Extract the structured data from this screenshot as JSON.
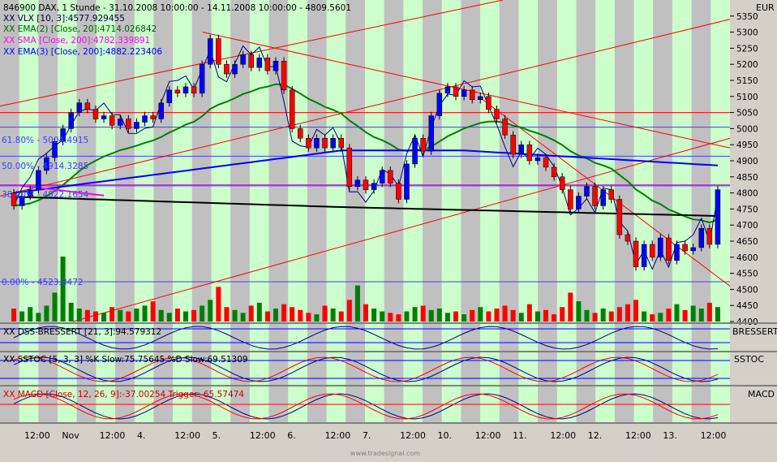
{
  "header": {
    "title_line": "846900  DAX, 1 Stunde - 31.10.2008 10:00:00 - 14.11.2008 10:00:00 - 4809.5601",
    "vlx": "XX VLX [10, 3]:4577.929455",
    "ema2": "XX EMA(2) [Close, 20]:4714.026842",
    "sma": "XX SMA [Close, 200]:4782.339891",
    "ema3": "XX EMA(3) [Close, 200]:4882.223406"
  },
  "fib": {
    "f618": "61.80% - 5004.4915",
    "f50": "50.00% - 4914.3285",
    "f382": "38.20% - 4822.1654",
    "f0": "0.00% - 4523.8472"
  },
  "currency": "EUR",
  "panels": {
    "dss": {
      "label": "XX DSS-BRESSERT [21, 3]:94.579312",
      "name": "BRESSERT"
    },
    "sstoc": {
      "label": "XX SSTOC [5, 3, 3] %K Slow:75.75645 %D Slow:69.51309",
      "name": "SSTOC"
    },
    "macd": {
      "label": "XX MACD [Close, 12, 26, 9]:-37.00254  Trigger:-65.57474",
      "name": "MACD"
    }
  },
  "x_labels": [
    "12:00",
    "Nov",
    "12:00",
    "4.",
    "12:00",
    "5.",
    "12:00",
    "6.",
    "12:00",
    "7.",
    "12:00",
    "10.",
    "12:00",
    "11.",
    "12:00",
    "12.",
    "12:00",
    "13.",
    "12:00"
  ],
  "watermark": "www.tradesignal.com",
  "colors": {
    "up": "#0000ff",
    "down": "#ff0000",
    "ema2": "#008000",
    "sma": "#ff00ff",
    "ema3": "#0000ff",
    "sma200": "#000000",
    "stripe_green": "#ccffcc",
    "stripe_gray": "#c0c0c0"
  },
  "chart_data": {
    "type": "candlestick",
    "x_unit": "hourly bars",
    "ylim": [
      4400,
      5400
    ],
    "y_ticks": [
      4400,
      4450,
      4500,
      4550,
      4600,
      4650,
      4700,
      4750,
      4800,
      4850,
      4900,
      4950,
      5000,
      5050,
      5100,
      5150,
      5200,
      5250,
      5300,
      5350
    ],
    "candles": [
      {
        "o": 4800,
        "c": 4760
      },
      {
        "o": 4760,
        "c": 4790
      },
      {
        "o": 4790,
        "c": 4810
      },
      {
        "o": 4810,
        "c": 4870
      },
      {
        "o": 4870,
        "c": 4910
      },
      {
        "o": 4910,
        "c": 4960
      },
      {
        "o": 4960,
        "c": 5000
      },
      {
        "o": 5000,
        "c": 5050
      },
      {
        "o": 5050,
        "c": 5080
      },
      {
        "o": 5080,
        "c": 5060
      },
      {
        "o": 5060,
        "c": 5030
      },
      {
        "o": 5030,
        "c": 5040
      },
      {
        "o": 5040,
        "c": 5010
      },
      {
        "o": 5010,
        "c": 5030
      },
      {
        "o": 5030,
        "c": 5000
      },
      {
        "o": 5000,
        "c": 5020
      },
      {
        "o": 5020,
        "c": 5040
      },
      {
        "o": 5040,
        "c": 5030
      },
      {
        "o": 5030,
        "c": 5080
      },
      {
        "o": 5080,
        "c": 5120
      },
      {
        "o": 5120,
        "c": 5110
      },
      {
        "o": 5110,
        "c": 5130
      },
      {
        "o": 5130,
        "c": 5110
      },
      {
        "o": 5110,
        "c": 5200
      },
      {
        "o": 5200,
        "c": 5280
      },
      {
        "o": 5280,
        "c": 5200
      },
      {
        "o": 5200,
        "c": 5170
      },
      {
        "o": 5170,
        "c": 5200
      },
      {
        "o": 5200,
        "c": 5230
      },
      {
        "o": 5230,
        "c": 5190
      },
      {
        "o": 5190,
        "c": 5220
      },
      {
        "o": 5220,
        "c": 5180
      },
      {
        "o": 5180,
        "c": 5210
      },
      {
        "o": 5210,
        "c": 5120
      },
      {
        "o": 5120,
        "c": 5000
      },
      {
        "o": 5000,
        "c": 4970
      },
      {
        "o": 4970,
        "c": 4940
      },
      {
        "o": 4940,
        "c": 4970
      },
      {
        "o": 4970,
        "c": 4940
      },
      {
        "o": 4940,
        "c": 4970
      },
      {
        "o": 4970,
        "c": 4940
      },
      {
        "o": 4940,
        "c": 4820
      },
      {
        "o": 4820,
        "c": 4840
      },
      {
        "o": 4840,
        "c": 4810
      },
      {
        "o": 4810,
        "c": 4830
      },
      {
        "o": 4830,
        "c": 4870
      },
      {
        "o": 4870,
        "c": 4830
      },
      {
        "o": 4830,
        "c": 4780
      },
      {
        "o": 4780,
        "c": 4890
      },
      {
        "o": 4890,
        "c": 4970
      },
      {
        "o": 4970,
        "c": 4930
      },
      {
        "o": 4930,
        "c": 5040
      },
      {
        "o": 5040,
        "c": 5110
      },
      {
        "o": 5110,
        "c": 5130
      },
      {
        "o": 5130,
        "c": 5100
      },
      {
        "o": 5100,
        "c": 5120
      },
      {
        "o": 5120,
        "c": 5090
      },
      {
        "o": 5090,
        "c": 5100
      },
      {
        "o": 5100,
        "c": 5060
      },
      {
        "o": 5060,
        "c": 5030
      },
      {
        "o": 5030,
        "c": 4980
      },
      {
        "o": 4980,
        "c": 4920
      },
      {
        "o": 4920,
        "c": 4950
      },
      {
        "o": 4950,
        "c": 4900
      },
      {
        "o": 4900,
        "c": 4910
      },
      {
        "o": 4910,
        "c": 4880
      },
      {
        "o": 4880,
        "c": 4850
      },
      {
        "o": 4850,
        "c": 4810
      },
      {
        "o": 4810,
        "c": 4750
      },
      {
        "o": 4750,
        "c": 4790
      },
      {
        "o": 4790,
        "c": 4820
      },
      {
        "o": 4820,
        "c": 4760
      },
      {
        "o": 4760,
        "c": 4810
      },
      {
        "o": 4810,
        "c": 4780
      },
      {
        "o": 4780,
        "c": 4670
      },
      {
        "o": 4670,
        "c": 4650
      },
      {
        "o": 4650,
        "c": 4570
      },
      {
        "o": 4570,
        "c": 4640
      },
      {
        "o": 4640,
        "c": 4600
      },
      {
        "o": 4600,
        "c": 4660
      },
      {
        "o": 4660,
        "c": 4590
      },
      {
        "o": 4590,
        "c": 4640
      },
      {
        "o": 4640,
        "c": 4620
      },
      {
        "o": 4620,
        "c": 4630
      },
      {
        "o": 4630,
        "c": 4690
      },
      {
        "o": 4690,
        "c": 4640
      },
      {
        "o": 4640,
        "c": 4810
      }
    ],
    "volume": [
      18,
      14,
      20,
      12,
      22,
      40,
      90,
      26,
      18,
      16,
      14,
      12,
      20,
      16,
      14,
      18,
      22,
      28,
      16,
      12,
      18,
      14,
      16,
      22,
      30,
      48,
      20,
      16,
      12,
      22,
      26,
      14,
      18,
      24,
      20,
      16,
      12,
      10,
      22,
      18,
      14,
      30,
      50,
      24,
      18,
      14,
      12,
      10,
      14,
      20,
      22,
      16,
      18,
      12,
      14,
      10,
      16,
      20,
      14,
      18,
      22,
      16,
      12,
      24,
      14,
      16,
      10,
      20,
      40,
      28,
      16,
      12,
      18,
      14,
      20,
      24,
      30,
      14,
      10,
      12,
      18,
      24,
      16,
      22,
      18,
      26,
      20
    ],
    "fib_levels": [
      5004.4915,
      4914.3285,
      4822.1654,
      4523.8472
    ]
  }
}
